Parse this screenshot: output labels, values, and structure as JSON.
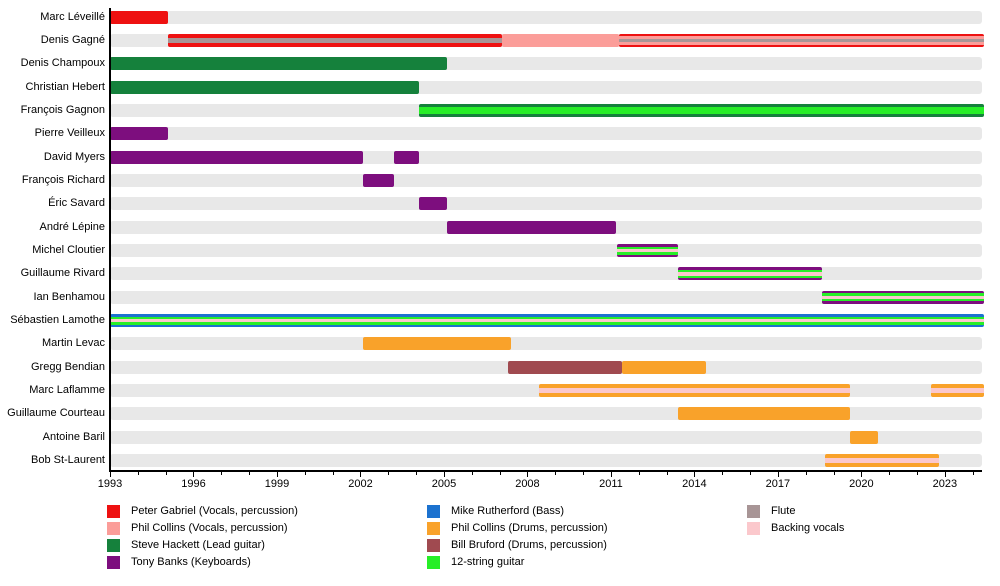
{
  "chart_data": {
    "type": "timeline",
    "title": "",
    "x_axis": {
      "start": 1993,
      "end": 2024.4,
      "major_ticks": [
        1993,
        1996,
        1999,
        2002,
        2005,
        2008,
        2011,
        2014,
        2017,
        2020,
        2023
      ],
      "minor_tick_interval": 1
    },
    "track_color": "#e8e8e8",
    "colors": {
      "peter_gabriel": "#ee1111",
      "phil_collins_vocals": "#fb9d99",
      "steve_hackett": "#15813c",
      "tony_banks": "#7d0e7e",
      "mike_rutherford": "#1c72cf",
      "phil_collins_drums": "#f9a22a",
      "bill_bruford": "#a04a50",
      "twelve_string": "#27ee27",
      "flute": "#a89596",
      "backing_vocals": "#fbc8cc"
    },
    "legend": {
      "items": [
        {
          "key": "peter_gabriel",
          "label": "Peter Gabriel (Vocals, percussion)"
        },
        {
          "key": "phil_collins_vocals",
          "label": "Phil Collins (Vocals, percussion)"
        },
        {
          "key": "steve_hackett",
          "label": "Steve Hackett (Lead guitar)"
        },
        {
          "key": "tony_banks",
          "label": "Tony Banks (Keyboards)"
        },
        {
          "key": "mike_rutherford",
          "label": "Mike Rutherford (Bass)"
        },
        {
          "key": "phil_collins_drums",
          "label": "Phil Collins (Drums, percussion)"
        },
        {
          "key": "bill_bruford",
          "label": "Bill Bruford (Drums, percussion)"
        },
        {
          "key": "twelve_string",
          "label": "12-string guitar"
        },
        {
          "key": "flute",
          "label": "Flute"
        },
        {
          "key": "backing_vocals",
          "label": "Backing vocals"
        }
      ],
      "columns": [
        [
          0,
          1,
          2,
          3
        ],
        [
          4,
          5,
          6,
          7
        ],
        [
          8,
          9
        ]
      ]
    },
    "members": [
      {
        "name": "Marc Léveillé",
        "segments": [
          {
            "start": 1993,
            "end": 1995.1,
            "roles": [
              "peter_gabriel"
            ]
          }
        ]
      },
      {
        "name": "Denis Gagné",
        "segments": [
          {
            "start": 1995.1,
            "end": 2007.1,
            "roles": [
              "peter_gabriel",
              "flute"
            ],
            "h": [
              13,
              5
            ]
          },
          {
            "start": 2007.1,
            "end": 2011.3,
            "roles": [
              "phil_collins_vocals"
            ]
          },
          {
            "start": 2011.3,
            "end": 2024.4,
            "roles": [
              "peter_gabriel",
              "phil_collins_vocals",
              "flute"
            ],
            "h": [
              13,
              9,
              3.5
            ]
          }
        ]
      },
      {
        "name": "Denis Champoux",
        "segments": [
          {
            "start": 1993,
            "end": 2005.1,
            "roles": [
              "steve_hackett"
            ]
          }
        ]
      },
      {
        "name": "Christian Hebert",
        "segments": [
          {
            "start": 1993,
            "end": 2004.1,
            "roles": [
              "steve_hackett"
            ]
          }
        ]
      },
      {
        "name": "François Gagnon",
        "segments": [
          {
            "start": 2004.1,
            "end": 2024.4,
            "roles": [
              "steve_hackett",
              "twelve_string"
            ],
            "h": [
              13,
              7
            ]
          }
        ]
      },
      {
        "name": "Pierre Veilleux",
        "segments": [
          {
            "start": 1993,
            "end": 1995.1,
            "roles": [
              "tony_banks"
            ]
          }
        ]
      },
      {
        "name": "David Myers",
        "segments": [
          {
            "start": 1993,
            "end": 2002.1,
            "roles": [
              "tony_banks"
            ]
          },
          {
            "start": 2003.2,
            "end": 2004.1,
            "roles": [
              "tony_banks"
            ]
          }
        ]
      },
      {
        "name": "François Richard",
        "segments": [
          {
            "start": 2002.1,
            "end": 2003.2,
            "roles": [
              "tony_banks"
            ]
          }
        ]
      },
      {
        "name": "Éric Savard",
        "segments": [
          {
            "start": 2004.1,
            "end": 2005.1,
            "roles": [
              "tony_banks"
            ]
          }
        ]
      },
      {
        "name": "André Lépine",
        "segments": [
          {
            "start": 2005.1,
            "end": 2011.2,
            "roles": [
              "tony_banks"
            ]
          }
        ]
      },
      {
        "name": "Michel Cloutier",
        "segments": [
          {
            "start": 2011.2,
            "end": 2013.4,
            "roles": [
              "tony_banks",
              "twelve_string",
              "backing_vocals"
            ]
          }
        ]
      },
      {
        "name": "Guillaume Rivard",
        "segments": [
          {
            "start": 2013.4,
            "end": 2018.6,
            "roles": [
              "tony_banks",
              "twelve_string",
              "backing_vocals"
            ]
          }
        ]
      },
      {
        "name": "Ian Benhamou",
        "segments": [
          {
            "start": 2018.6,
            "end": 2024.4,
            "roles": [
              "tony_banks",
              "twelve_string",
              "backing_vocals"
            ]
          }
        ]
      },
      {
        "name": "Sébastien Lamothe",
        "segments": [
          {
            "start": 1993,
            "end": 2024.4,
            "roles": [
              "mike_rutherford",
              "twelve_string",
              "backing_vocals"
            ],
            "h": [
              13,
              8,
              3.5
            ]
          }
        ]
      },
      {
        "name": "Martin Levac",
        "segments": [
          {
            "start": 2002.1,
            "end": 2007.4,
            "roles": [
              "phil_collins_drums"
            ]
          }
        ]
      },
      {
        "name": "Gregg Bendian",
        "segments": [
          {
            "start": 2007.3,
            "end": 2011.4,
            "roles": [
              "bill_bruford"
            ]
          },
          {
            "start": 2011.4,
            "end": 2014.4,
            "roles": [
              "phil_collins_drums"
            ]
          }
        ]
      },
      {
        "name": "Marc Laflamme",
        "segments": [
          {
            "start": 2008.4,
            "end": 2019.6,
            "roles": [
              "phil_collins_drums",
              "backing_vocals"
            ],
            "h": [
              13,
              4.5
            ]
          },
          {
            "start": 2022.5,
            "end": 2024.4,
            "roles": [
              "phil_collins_drums",
              "backing_vocals"
            ],
            "h": [
              13,
              4.5
            ]
          }
        ]
      },
      {
        "name": "Guillaume Courteau",
        "segments": [
          {
            "start": 2013.4,
            "end": 2019.6,
            "roles": [
              "phil_collins_drums"
            ]
          }
        ]
      },
      {
        "name": "Antoine Baril",
        "segments": [
          {
            "start": 2019.6,
            "end": 2020.6,
            "roles": [
              "phil_collins_drums"
            ]
          }
        ]
      },
      {
        "name": "Bob St-Laurent",
        "segments": [
          {
            "start": 2018.7,
            "end": 2022.8,
            "roles": [
              "phil_collins_drums",
              "backing_vocals"
            ],
            "h": [
              13,
              4.5
            ]
          }
        ]
      }
    ]
  }
}
